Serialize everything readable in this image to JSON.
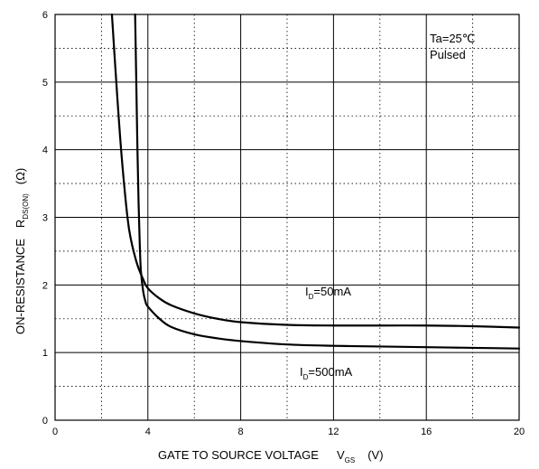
{
  "chart_data": {
    "type": "line",
    "title": "",
    "xlabel": {
      "main": "GATE TO SOURCE VOLTAGE",
      "symbol": "V",
      "subscript": "GS",
      "unit": "(V)"
    },
    "ylabel": {
      "main": "ON-RESISTANCE",
      "symbol": "R",
      "subscript": "DS(ON)",
      "unit": "(Ω)"
    },
    "xlim": [
      0,
      20
    ],
    "ylim": [
      0,
      6
    ],
    "x_ticks": [
      "0",
      "4",
      "8",
      "12",
      "16",
      "20"
    ],
    "y_ticks": [
      "0",
      "1",
      "2",
      "3",
      "4",
      "5",
      "6"
    ],
    "grid": {
      "major": "solid",
      "minor": "dotted"
    },
    "conditions": [
      "Ta=25℃",
      "Pulsed"
    ],
    "series": [
      {
        "label": {
          "symbol": "I",
          "subscript": "D",
          "rest": "=50mA"
        },
        "points": [
          [
            2.45,
            6.0
          ],
          [
            2.6,
            5.2
          ],
          [
            2.8,
            4.2
          ],
          [
            3.0,
            3.4
          ],
          [
            3.2,
            2.8
          ],
          [
            3.5,
            2.35
          ],
          [
            3.8,
            2.08
          ],
          [
            4.0,
            1.95
          ],
          [
            4.5,
            1.8
          ],
          [
            5.0,
            1.7
          ],
          [
            6.0,
            1.58
          ],
          [
            7.0,
            1.5
          ],
          [
            8.0,
            1.45
          ],
          [
            10.0,
            1.41
          ],
          [
            12.0,
            1.4
          ],
          [
            14.0,
            1.4
          ],
          [
            16.0,
            1.4
          ],
          [
            18.0,
            1.39
          ],
          [
            20.0,
            1.37
          ]
        ]
      },
      {
        "label": {
          "symbol": "I",
          "subscript": "D",
          "rest": "=500mA"
        },
        "points": [
          [
            3.45,
            6.0
          ],
          [
            3.5,
            5.0
          ],
          [
            3.55,
            4.0
          ],
          [
            3.6,
            3.2
          ],
          [
            3.65,
            2.6
          ],
          [
            3.7,
            2.2
          ],
          [
            3.8,
            1.9
          ],
          [
            3.9,
            1.75
          ],
          [
            4.0,
            1.68
          ],
          [
            4.5,
            1.5
          ],
          [
            5.0,
            1.38
          ],
          [
            6.0,
            1.27
          ],
          [
            7.0,
            1.21
          ],
          [
            8.0,
            1.17
          ],
          [
            10.0,
            1.12
          ],
          [
            12.0,
            1.1
          ],
          [
            14.0,
            1.09
          ],
          [
            16.0,
            1.08
          ],
          [
            18.0,
            1.07
          ],
          [
            20.0,
            1.06
          ]
        ]
      }
    ]
  }
}
